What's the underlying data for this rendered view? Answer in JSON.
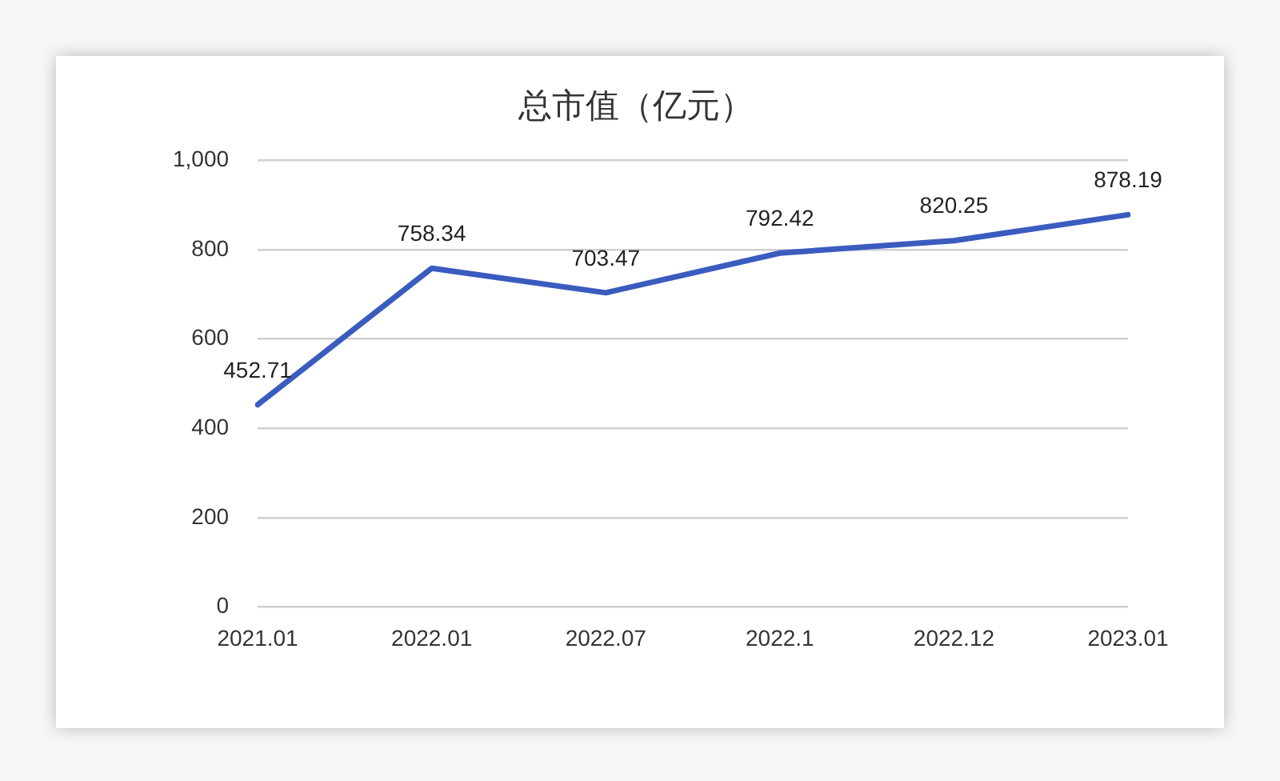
{
  "chart_data": {
    "type": "line",
    "title": "总市值（亿元）",
    "categories": [
      "2021.01",
      "2022.01",
      "2022.07",
      "2022.1",
      "2022.12",
      "2023.01"
    ],
    "series": [
      {
        "color": "#3a5cbf",
        "values": [
          452.71,
          758.34,
          703.47,
          792.42,
          820.25,
          878.19
        ]
      }
    ],
    "ylim": [
      0,
      1000
    ],
    "yticks": [
      0,
      200,
      400,
      600,
      800,
      {
        "value": 1000,
        "label": "1,000"
      }
    ],
    "grid": "y",
    "legend": false,
    "data_labels": true,
    "marker": "none",
    "line_style": "solid"
  }
}
